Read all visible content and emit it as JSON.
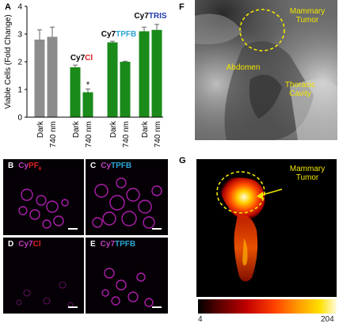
{
  "panels": {
    "A": {
      "letter": "A",
      "chart_data": {
        "type": "bar",
        "ylabel": "Viable Cells (Fold Change)",
        "ylim": [
          0,
          4
        ],
        "yticks": [
          "0",
          "1",
          "2",
          "3",
          "4"
        ],
        "categories": [
          "Dark",
          "740 nm",
          "Dark",
          "740 nm",
          "Dark",
          "740 nm",
          "Dark",
          "740 nm"
        ],
        "groups": [
          {
            "name": "",
            "values": [
              2.8,
              2.9
            ],
            "errors": [
              0.35,
              0.35
            ],
            "color": "#8c8c8c"
          },
          {
            "name": "Cy7Cl",
            "values": [
              1.8,
              0.9
            ],
            "errors": [
              0.08,
              0.12
            ],
            "color": "#1a8a1a"
          },
          {
            "name": "Cy7TPFB",
            "values": [
              2.7,
              2.0
            ],
            "errors": [
              0.04,
              0.02
            ],
            "color": "#1a8a1a"
          },
          {
            "name": "Cy7TRIS",
            "values": [
              3.1,
              3.15
            ],
            "errors": [
              0.15,
              0.2
            ],
            "color": "#1a8a1a"
          }
        ],
        "annotations": [
          "*"
        ]
      },
      "group_labels": [
        {
          "prefix": "Cy7",
          "suffix": "Cl",
          "suffix_color": "#e02020"
        },
        {
          "prefix": "Cy7",
          "suffix": "TPFB",
          "suffix_color": "#2aa6d6"
        },
        {
          "prefix": "Cy7",
          "suffix": "TRIS",
          "suffix_color": "#1e3cb0"
        }
      ]
    },
    "B": {
      "letter": "B",
      "prefix": "Cy",
      "suffix": "PF",
      "sub": "6",
      "suffix_color": "#e02020"
    },
    "C": {
      "letter": "C",
      "prefix": "Cy",
      "suffix": "TPFB",
      "suffix_color": "#2aa6d6"
    },
    "D": {
      "letter": "D",
      "prefix": "Cy7",
      "suffix": "Cl",
      "suffix_color": "#e02020"
    },
    "E": {
      "letter": "E",
      "prefix": "Cy7",
      "suffix": "TPFB",
      "suffix_color": "#2aa6d6"
    },
    "F": {
      "letter": "F",
      "labels": {
        "tumor": "Mammary Tumor",
        "abdomen": "Abdomen",
        "thoracic": "Thoracic Cavity"
      }
    },
    "G": {
      "letter": "G",
      "labels": {
        "tumor": "Mammary Tumor"
      },
      "colorbar": {
        "min": "4",
        "max": "204"
      }
    }
  },
  "colors": {
    "label_yellow": "#f2e600",
    "bar_gray": "#8c8c8c",
    "bar_green": "#1a8a1a",
    "micro_magenta": "#c020c0"
  }
}
